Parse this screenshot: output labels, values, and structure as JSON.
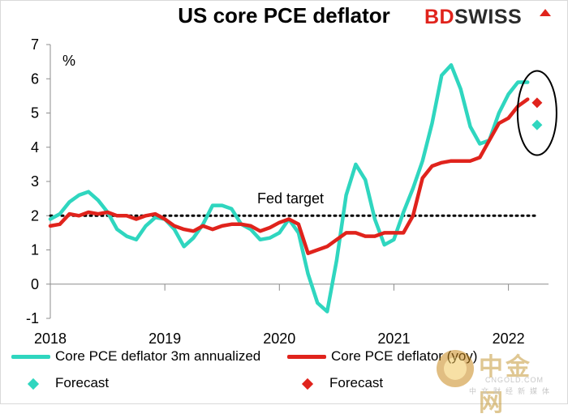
{
  "brand": {
    "logo_bd": "BD",
    "logo_rest": "SWISS",
    "colors": {
      "teal": "#2fd6bf",
      "red": "#e0231c",
      "text": "#000000"
    }
  },
  "watermark": {
    "title": "中金网",
    "line1": "CNGOLD.COM",
    "line2": "中文财经新媒体"
  },
  "chart_data": {
    "type": "line",
    "title": "US core PCE deflator",
    "ylabel": "%",
    "ylim": [
      -1,
      7
    ],
    "yticks": [
      "-1",
      "0",
      "1",
      "2",
      "3",
      "4",
      "5",
      "6",
      "7"
    ],
    "xlim": [
      2018.0,
      2022.35
    ],
    "xticks": [
      {
        "x": 2018,
        "label": "2018"
      },
      {
        "x": 2019,
        "label": "2019"
      },
      {
        "x": 2020,
        "label": "2020"
      },
      {
        "x": 2021,
        "label": "2021"
      },
      {
        "x": 2022,
        "label": "2022"
      }
    ],
    "grid": false,
    "fed_target": {
      "value": 2,
      "label": "Fed target"
    },
    "series": [
      {
        "name": "Core PCE deflator 3m annualized",
        "color": "#2fd6bf",
        "points": [
          [
            2018.0,
            1.9
          ],
          [
            2018.083,
            2.05
          ],
          [
            2018.167,
            2.4
          ],
          [
            2018.25,
            2.6
          ],
          [
            2018.333,
            2.7
          ],
          [
            2018.417,
            2.45
          ],
          [
            2018.5,
            2.1
          ],
          [
            2018.583,
            1.6
          ],
          [
            2018.667,
            1.4
          ],
          [
            2018.75,
            1.3
          ],
          [
            2018.833,
            1.7
          ],
          [
            2018.917,
            1.95
          ],
          [
            2019.0,
            1.9
          ],
          [
            2019.083,
            1.6
          ],
          [
            2019.167,
            1.1
          ],
          [
            2019.25,
            1.35
          ],
          [
            2019.333,
            1.75
          ],
          [
            2019.417,
            2.3
          ],
          [
            2019.5,
            2.3
          ],
          [
            2019.583,
            2.2
          ],
          [
            2019.667,
            1.75
          ],
          [
            2019.75,
            1.6
          ],
          [
            2019.833,
            1.3
          ],
          [
            2019.917,
            1.35
          ],
          [
            2020.0,
            1.5
          ],
          [
            2020.083,
            1.9
          ],
          [
            2020.167,
            1.5
          ],
          [
            2020.25,
            0.3
          ],
          [
            2020.333,
            -0.55
          ],
          [
            2020.417,
            -0.8
          ],
          [
            2020.5,
            0.7
          ],
          [
            2020.583,
            2.6
          ],
          [
            2020.667,
            3.5
          ],
          [
            2020.75,
            3.05
          ],
          [
            2020.833,
            1.9
          ],
          [
            2020.917,
            1.15
          ],
          [
            2021.0,
            1.3
          ],
          [
            2021.083,
            2.1
          ],
          [
            2021.167,
            2.8
          ],
          [
            2021.25,
            3.6
          ],
          [
            2021.333,
            4.7
          ],
          [
            2021.417,
            6.1
          ],
          [
            2021.5,
            6.4
          ],
          [
            2021.583,
            5.7
          ],
          [
            2021.667,
            4.6
          ],
          [
            2021.75,
            4.1
          ],
          [
            2021.833,
            4.2
          ],
          [
            2021.917,
            5.0
          ],
          [
            2022.0,
            5.55
          ],
          [
            2022.083,
            5.9
          ],
          [
            2022.167,
            5.9
          ]
        ]
      },
      {
        "name": "Core PCE deflator (yoy)",
        "color": "#e0231c",
        "points": [
          [
            2018.0,
            1.7
          ],
          [
            2018.083,
            1.75
          ],
          [
            2018.167,
            2.05
          ],
          [
            2018.25,
            2.0
          ],
          [
            2018.333,
            2.1
          ],
          [
            2018.417,
            2.05
          ],
          [
            2018.5,
            2.1
          ],
          [
            2018.583,
            2.0
          ],
          [
            2018.667,
            2.0
          ],
          [
            2018.75,
            1.9
          ],
          [
            2018.833,
            2.0
          ],
          [
            2018.917,
            2.05
          ],
          [
            2019.0,
            1.9
          ],
          [
            2019.083,
            1.7
          ],
          [
            2019.167,
            1.6
          ],
          [
            2019.25,
            1.55
          ],
          [
            2019.333,
            1.7
          ],
          [
            2019.417,
            1.6
          ],
          [
            2019.5,
            1.7
          ],
          [
            2019.583,
            1.75
          ],
          [
            2019.667,
            1.75
          ],
          [
            2019.75,
            1.7
          ],
          [
            2019.833,
            1.55
          ],
          [
            2019.917,
            1.65
          ],
          [
            2020.0,
            1.8
          ],
          [
            2020.083,
            1.9
          ],
          [
            2020.167,
            1.75
          ],
          [
            2020.25,
            0.9
          ],
          [
            2020.333,
            1.0
          ],
          [
            2020.417,
            1.1
          ],
          [
            2020.5,
            1.3
          ],
          [
            2020.583,
            1.5
          ],
          [
            2020.667,
            1.5
          ],
          [
            2020.75,
            1.4
          ],
          [
            2020.833,
            1.4
          ],
          [
            2020.917,
            1.5
          ],
          [
            2021.0,
            1.5
          ],
          [
            2021.083,
            1.5
          ],
          [
            2021.167,
            2.0
          ],
          [
            2021.25,
            3.1
          ],
          [
            2021.333,
            3.45
          ],
          [
            2021.417,
            3.55
          ],
          [
            2021.5,
            3.6
          ],
          [
            2021.583,
            3.6
          ],
          [
            2021.667,
            3.6
          ],
          [
            2021.75,
            3.7
          ],
          [
            2021.833,
            4.2
          ],
          [
            2021.917,
            4.7
          ],
          [
            2022.0,
            4.85
          ],
          [
            2022.083,
            5.2
          ],
          [
            2022.167,
            5.4
          ]
        ]
      }
    ],
    "forecasts": [
      {
        "name": "Forecast",
        "color": "#2fd6bf",
        "x": 2022.25,
        "y": 4.65
      },
      {
        "name": "Forecast",
        "color": "#e0231c",
        "x": 2022.25,
        "y": 5.3
      }
    ],
    "legend": {
      "position": "bottom",
      "items": [
        {
          "label": "Core PCE deflator 3m annualized",
          "color": "#2fd6bf",
          "marker": "line"
        },
        {
          "label": "Core PCE deflator (yoy)",
          "color": "#e0231c",
          "marker": "line"
        },
        {
          "label": "Forecast",
          "color": "#2fd6bf",
          "marker": "diamond"
        },
        {
          "label": "Forecast",
          "color": "#e0231c",
          "marker": "diamond"
        }
      ]
    }
  }
}
